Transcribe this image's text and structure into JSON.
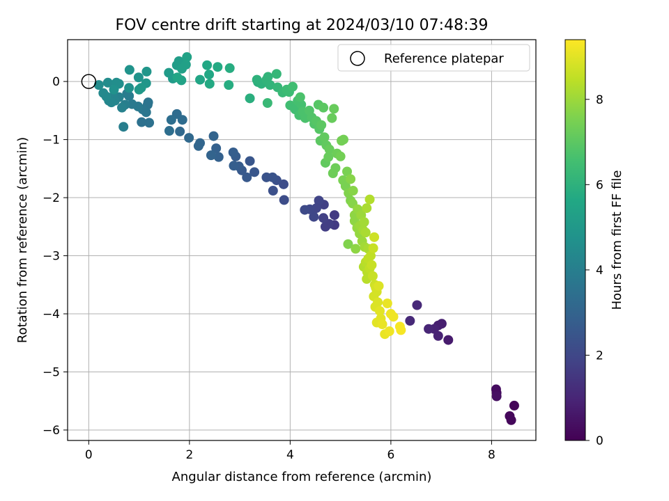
{
  "chart_data": {
    "type": "scatter",
    "title": "FOV centre drift starting at 2024/03/10 07:48:39",
    "xlabel": "Angular distance from reference (arcmin)",
    "ylabel": "Rotation from reference (arcmin)",
    "xlim": [
      -0.42,
      8.88
    ],
    "ylim": [
      -6.18,
      0.72
    ],
    "xticks": [
      0,
      2,
      4,
      6,
      8
    ],
    "yticks": [
      0,
      -1,
      -2,
      -3,
      -4,
      -5,
      -6
    ],
    "grid": true,
    "legend": {
      "placement": "top-right",
      "entries": [
        "Reference platepar"
      ]
    },
    "reference_point": {
      "x": 0,
      "y": 0
    },
    "colorbar": {
      "label": "Hours from first FF file",
      "range": [
        0,
        9.4
      ],
      "ticks": [
        0,
        2,
        4,
        6,
        8
      ],
      "colormap": "viridis"
    },
    "points": [
      {
        "x": 8.45,
        "y": -5.58,
        "c": 0.1
      },
      {
        "x": 8.36,
        "y": -5.76,
        "c": 0.2
      },
      {
        "x": 8.39,
        "y": -5.83,
        "c": 0.2
      },
      {
        "x": 8.09,
        "y": -5.3,
        "c": 0.3
      },
      {
        "x": 8.1,
        "y": -5.36,
        "c": 0.3
      },
      {
        "x": 8.1,
        "y": -5.42,
        "c": 0.4
      },
      {
        "x": 7.14,
        "y": -4.45,
        "c": 0.7
      },
      {
        "x": 7.01,
        "y": -4.17,
        "c": 0.8
      },
      {
        "x": 6.94,
        "y": -4.2,
        "c": 0.8
      },
      {
        "x": 6.94,
        "y": -4.38,
        "c": 0.9
      },
      {
        "x": 6.86,
        "y": -4.26,
        "c": 0.9
      },
      {
        "x": 6.75,
        "y": -4.26,
        "c": 1.0
      },
      {
        "x": 6.52,
        "y": -3.85,
        "c": 1.1
      },
      {
        "x": 6.38,
        "y": -4.12,
        "c": 1.1
      },
      {
        "x": 4.88,
        "y": -2.47,
        "c": 1.6
      },
      {
        "x": 4.88,
        "y": -2.3,
        "c": 1.6
      },
      {
        "x": 4.77,
        "y": -2.45,
        "c": 1.7
      },
      {
        "x": 4.7,
        "y": -2.5,
        "c": 1.7
      },
      {
        "x": 4.66,
        "y": -2.35,
        "c": 1.8
      },
      {
        "x": 4.67,
        "y": -2.12,
        "c": 1.8
      },
      {
        "x": 4.57,
        "y": -2.05,
        "c": 1.9
      },
      {
        "x": 4.52,
        "y": -2.18,
        "c": 1.9
      },
      {
        "x": 4.47,
        "y": -2.33,
        "c": 2.0
      },
      {
        "x": 4.39,
        "y": -2.2,
        "c": 2.0
      },
      {
        "x": 4.29,
        "y": -2.21,
        "c": 2.1
      },
      {
        "x": 3.88,
        "y": -2.04,
        "c": 2.2
      },
      {
        "x": 3.87,
        "y": -1.77,
        "c": 2.2
      },
      {
        "x": 3.66,
        "y": -1.88,
        "c": 2.3
      },
      {
        "x": 3.73,
        "y": -1.7,
        "c": 2.3
      },
      {
        "x": 3.65,
        "y": -1.65,
        "c": 2.4
      },
      {
        "x": 3.53,
        "y": -1.65,
        "c": 2.4
      },
      {
        "x": 3.29,
        "y": -1.56,
        "c": 2.5
      },
      {
        "x": 3.2,
        "y": -1.37,
        "c": 2.5
      },
      {
        "x": 3.14,
        "y": -1.65,
        "c": 2.6
      },
      {
        "x": 3.04,
        "y": -1.53,
        "c": 2.6
      },
      {
        "x": 2.98,
        "y": -1.46,
        "c": 2.7
      },
      {
        "x": 2.92,
        "y": -1.29,
        "c": 2.7
      },
      {
        "x": 2.88,
        "y": -1.45,
        "c": 2.8
      },
      {
        "x": 2.87,
        "y": -1.22,
        "c": 2.8
      },
      {
        "x": 2.58,
        "y": -1.3,
        "c": 2.9
      },
      {
        "x": 2.53,
        "y": -1.15,
        "c": 2.9
      },
      {
        "x": 2.48,
        "y": -0.94,
        "c": 3.0
      },
      {
        "x": 2.43,
        "y": -1.27,
        "c": 3.0
      },
      {
        "x": 2.21,
        "y": -1.06,
        "c": 3.1
      },
      {
        "x": 2.18,
        "y": -1.11,
        "c": 3.1
      },
      {
        "x": 1.99,
        "y": -0.97,
        "c": 3.2
      },
      {
        "x": 1.81,
        "y": -0.86,
        "c": 3.2
      },
      {
        "x": 1.86,
        "y": -0.66,
        "c": 3.3
      },
      {
        "x": 1.75,
        "y": -0.56,
        "c": 3.3
      },
      {
        "x": 1.64,
        "y": -0.66,
        "c": 3.4
      },
      {
        "x": 1.6,
        "y": -0.85,
        "c": 3.4
      },
      {
        "x": 1.2,
        "y": -0.71,
        "c": 3.5
      },
      {
        "x": 1.05,
        "y": -0.7,
        "c": 3.5
      },
      {
        "x": 1.18,
        "y": -0.36,
        "c": 3.6
      },
      {
        "x": 1.17,
        "y": -0.4,
        "c": 3.6
      },
      {
        "x": 1.14,
        "y": -0.53,
        "c": 3.7
      },
      {
        "x": 1.07,
        "y": -0.48,
        "c": 3.7
      },
      {
        "x": 0.98,
        "y": -0.43,
        "c": 3.8
      },
      {
        "x": 0.86,
        "y": -0.39,
        "c": 3.8
      },
      {
        "x": 0.8,
        "y": -0.25,
        "c": 3.9
      },
      {
        "x": 0.76,
        "y": -0.21,
        "c": 3.9
      },
      {
        "x": 0.69,
        "y": -0.78,
        "c": 4.0
      },
      {
        "x": 0.72,
        "y": -0.4,
        "c": 4.0
      },
      {
        "x": 0.66,
        "y": -0.45,
        "c": 4.1
      },
      {
        "x": 0.6,
        "y": -0.27,
        "c": 4.1
      },
      {
        "x": 0.52,
        "y": -0.33,
        "c": 4.2
      },
      {
        "x": 0.48,
        "y": -0.26,
        "c": 4.2
      },
      {
        "x": 0.45,
        "y": -0.36,
        "c": 4.3
      },
      {
        "x": 0.4,
        "y": -0.33,
        "c": 4.3
      },
      {
        "x": 0.35,
        "y": -0.26,
        "c": 4.4
      },
      {
        "x": 0.29,
        "y": -0.2,
        "c": 4.4
      },
      {
        "x": 0.2,
        "y": -0.06,
        "c": 4.5
      },
      {
        "x": 0.38,
        "y": -0.02,
        "c": 4.5
      },
      {
        "x": 0.55,
        "y": -0.02,
        "c": 4.6
      },
      {
        "x": 0.6,
        "y": -0.04,
        "c": 4.6
      },
      {
        "x": 0.5,
        "y": -0.14,
        "c": 4.7
      },
      {
        "x": 0.8,
        "y": -0.11,
        "c": 4.7
      },
      {
        "x": 0.81,
        "y": 0.2,
        "c": 4.8
      },
      {
        "x": 0.99,
        "y": 0.07,
        "c": 4.8
      },
      {
        "x": 1.15,
        "y": 0.17,
        "c": 4.9
      },
      {
        "x": 1.14,
        "y": -0.03,
        "c": 4.9
      },
      {
        "x": 1.04,
        "y": -0.11,
        "c": 5.0
      },
      {
        "x": 1.0,
        "y": -0.14,
        "c": 5.0
      },
      {
        "x": 1.59,
        "y": 0.15,
        "c": 5.1
      },
      {
        "x": 1.67,
        "y": 0.05,
        "c": 5.1
      },
      {
        "x": 1.75,
        "y": 0.28,
        "c": 5.2
      },
      {
        "x": 1.79,
        "y": 0.35,
        "c": 5.2
      },
      {
        "x": 1.85,
        "y": 0.22,
        "c": 5.3
      },
      {
        "x": 1.93,
        "y": 0.29,
        "c": 5.3
      },
      {
        "x": 1.95,
        "y": 0.42,
        "c": 5.4
      },
      {
        "x": 1.84,
        "y": 0.02,
        "c": 5.4
      },
      {
        "x": 1.76,
        "y": 0.07,
        "c": 5.5
      },
      {
        "x": 2.21,
        "y": 0.03,
        "c": 5.5
      },
      {
        "x": 2.35,
        "y": 0.28,
        "c": 5.6
      },
      {
        "x": 2.39,
        "y": 0.12,
        "c": 5.6
      },
      {
        "x": 2.4,
        "y": -0.04,
        "c": 5.7
      },
      {
        "x": 2.56,
        "y": 0.25,
        "c": 5.7
      },
      {
        "x": 2.8,
        "y": 0.23,
        "c": 5.8
      },
      {
        "x": 2.78,
        "y": -0.06,
        "c": 5.8
      },
      {
        "x": 3.2,
        "y": -0.29,
        "c": 5.9
      },
      {
        "x": 3.36,
        "y": -0.01,
        "c": 5.9
      },
      {
        "x": 3.34,
        "y": 0.03,
        "c": 6.0
      },
      {
        "x": 3.43,
        "y": -0.04,
        "c": 6.0
      },
      {
        "x": 3.53,
        "y": 0.03,
        "c": 6.1
      },
      {
        "x": 3.56,
        "y": 0.08,
        "c": 6.1
      },
      {
        "x": 3.6,
        "y": -0.06,
        "c": 6.1
      },
      {
        "x": 3.73,
        "y": 0.13,
        "c": 6.2
      },
      {
        "x": 3.75,
        "y": -0.1,
        "c": 6.2
      },
      {
        "x": 3.55,
        "y": -0.37,
        "c": 6.3
      },
      {
        "x": 3.85,
        "y": -0.19,
        "c": 6.3
      },
      {
        "x": 3.93,
        "y": -0.14,
        "c": 6.4
      },
      {
        "x": 3.98,
        "y": -0.18,
        "c": 6.4
      },
      {
        "x": 4.05,
        "y": -0.09,
        "c": 6.5
      },
      {
        "x": 4.0,
        "y": -0.41,
        "c": 6.5
      },
      {
        "x": 4.1,
        "y": -0.48,
        "c": 6.5
      },
      {
        "x": 4.18,
        "y": -0.58,
        "c": 6.6
      },
      {
        "x": 4.15,
        "y": -0.33,
        "c": 6.6
      },
      {
        "x": 4.22,
        "y": -0.4,
        "c": 6.6
      },
      {
        "x": 4.25,
        "y": -0.52,
        "c": 6.7
      },
      {
        "x": 4.3,
        "y": -0.63,
        "c": 6.7
      },
      {
        "x": 4.2,
        "y": -0.27,
        "c": 6.7
      },
      {
        "x": 4.38,
        "y": -0.5,
        "c": 6.8
      },
      {
        "x": 4.43,
        "y": -0.62,
        "c": 6.8
      },
      {
        "x": 4.48,
        "y": -0.73,
        "c": 6.8
      },
      {
        "x": 4.52,
        "y": -0.68,
        "c": 6.9
      },
      {
        "x": 4.56,
        "y": -0.4,
        "c": 6.9
      },
      {
        "x": 4.58,
        "y": -0.82,
        "c": 6.9
      },
      {
        "x": 4.62,
        "y": -0.75,
        "c": 7.0
      },
      {
        "x": 4.6,
        "y": -1.02,
        "c": 7.0
      },
      {
        "x": 4.66,
        "y": -0.45,
        "c": 7.0
      },
      {
        "x": 4.68,
        "y": -0.96,
        "c": 7.1
      },
      {
        "x": 4.72,
        "y": -1.1,
        "c": 7.1
      },
      {
        "x": 4.7,
        "y": -1.4,
        "c": 7.1
      },
      {
        "x": 4.76,
        "y": -1.3,
        "c": 7.2
      },
      {
        "x": 4.78,
        "y": -1.17,
        "c": 7.2
      },
      {
        "x": 4.83,
        "y": -0.63,
        "c": 7.2
      },
      {
        "x": 4.87,
        "y": -0.47,
        "c": 7.2
      },
      {
        "x": 4.85,
        "y": -1.58,
        "c": 7.3
      },
      {
        "x": 4.9,
        "y": -1.49,
        "c": 7.3
      },
      {
        "x": 4.93,
        "y": -1.24,
        "c": 7.3
      },
      {
        "x": 5.0,
        "y": -1.29,
        "c": 7.4
      },
      {
        "x": 5.02,
        "y": -1.02,
        "c": 7.4
      },
      {
        "x": 5.06,
        "y": -1.0,
        "c": 7.4
      },
      {
        "x": 5.05,
        "y": -1.7,
        "c": 7.5
      },
      {
        "x": 5.1,
        "y": -1.8,
        "c": 7.5
      },
      {
        "x": 5.13,
        "y": -1.55,
        "c": 7.5
      },
      {
        "x": 5.15,
        "y": -2.8,
        "c": 7.6
      },
      {
        "x": 5.16,
        "y": -1.92,
        "c": 7.6
      },
      {
        "x": 5.2,
        "y": -2.05,
        "c": 7.6
      },
      {
        "x": 5.2,
        "y": -1.68,
        "c": 7.7
      },
      {
        "x": 5.25,
        "y": -1.88,
        "c": 7.7
      },
      {
        "x": 5.24,
        "y": -2.1,
        "c": 7.7
      },
      {
        "x": 5.28,
        "y": -2.3,
        "c": 7.8
      },
      {
        "x": 5.28,
        "y": -2.4,
        "c": 7.8
      },
      {
        "x": 5.3,
        "y": -2.88,
        "c": 7.8
      },
      {
        "x": 5.33,
        "y": -2.52,
        "c": 7.9
      },
      {
        "x": 5.34,
        "y": -2.2,
        "c": 7.9
      },
      {
        "x": 5.38,
        "y": -2.62,
        "c": 7.9
      },
      {
        "x": 5.39,
        "y": -2.48,
        "c": 8.0
      },
      {
        "x": 5.41,
        "y": -2.3,
        "c": 8.0
      },
      {
        "x": 5.43,
        "y": -2.75,
        "c": 8.0
      },
      {
        "x": 5.45,
        "y": -2.56,
        "c": 8.1
      },
      {
        "x": 5.47,
        "y": -2.42,
        "c": 8.1
      },
      {
        "x": 5.48,
        "y": -2.85,
        "c": 8.1
      },
      {
        "x": 5.5,
        "y": -2.6,
        "c": 8.2
      },
      {
        "x": 5.52,
        "y": -2.18,
        "c": 8.2
      },
      {
        "x": 5.55,
        "y": -2.88,
        "c": 8.2
      },
      {
        "x": 5.58,
        "y": -2.03,
        "c": 8.3
      },
      {
        "x": 5.46,
        "y": -3.19,
        "c": 8.3
      },
      {
        "x": 5.5,
        "y": -3.11,
        "c": 8.4
      },
      {
        "x": 5.53,
        "y": -3.28,
        "c": 8.4
      },
      {
        "x": 5.52,
        "y": -3.4,
        "c": 8.4
      },
      {
        "x": 5.55,
        "y": -3.05,
        "c": 8.5
      },
      {
        "x": 5.58,
        "y": -3.22,
        "c": 8.5
      },
      {
        "x": 5.6,
        "y": -3.0,
        "c": 8.5
      },
      {
        "x": 5.62,
        "y": -3.16,
        "c": 8.6
      },
      {
        "x": 5.65,
        "y": -2.87,
        "c": 8.6
      },
      {
        "x": 5.64,
        "y": -3.35,
        "c": 8.6
      },
      {
        "x": 5.67,
        "y": -2.68,
        "c": 8.7
      },
      {
        "x": 5.68,
        "y": -3.5,
        "c": 8.7
      },
      {
        "x": 5.66,
        "y": -3.7,
        "c": 8.8
      },
      {
        "x": 5.7,
        "y": -3.55,
        "c": 8.8
      },
      {
        "x": 5.72,
        "y": -3.62,
        "c": 8.8
      },
      {
        "x": 5.69,
        "y": -3.88,
        "c": 8.9
      },
      {
        "x": 5.74,
        "y": -3.8,
        "c": 8.9
      },
      {
        "x": 5.76,
        "y": -3.52,
        "c": 8.9
      },
      {
        "x": 5.78,
        "y": -3.95,
        "c": 9.0
      },
      {
        "x": 5.72,
        "y": -4.15,
        "c": 9.0
      },
      {
        "x": 5.8,
        "y": -4.08,
        "c": 9.0
      },
      {
        "x": 5.83,
        "y": -4.18,
        "c": 9.1
      },
      {
        "x": 5.88,
        "y": -4.35,
        "c": 9.1
      },
      {
        "x": 5.93,
        "y": -3.82,
        "c": 9.1
      },
      {
        "x": 5.97,
        "y": -4.3,
        "c": 9.2
      },
      {
        "x": 6.0,
        "y": -4.0,
        "c": 9.2
      },
      {
        "x": 6.05,
        "y": -4.05,
        "c": 9.2
      },
      {
        "x": 6.18,
        "y": -4.22,
        "c": 9.3
      },
      {
        "x": 6.2,
        "y": -4.28,
        "c": 9.3
      }
    ]
  }
}
